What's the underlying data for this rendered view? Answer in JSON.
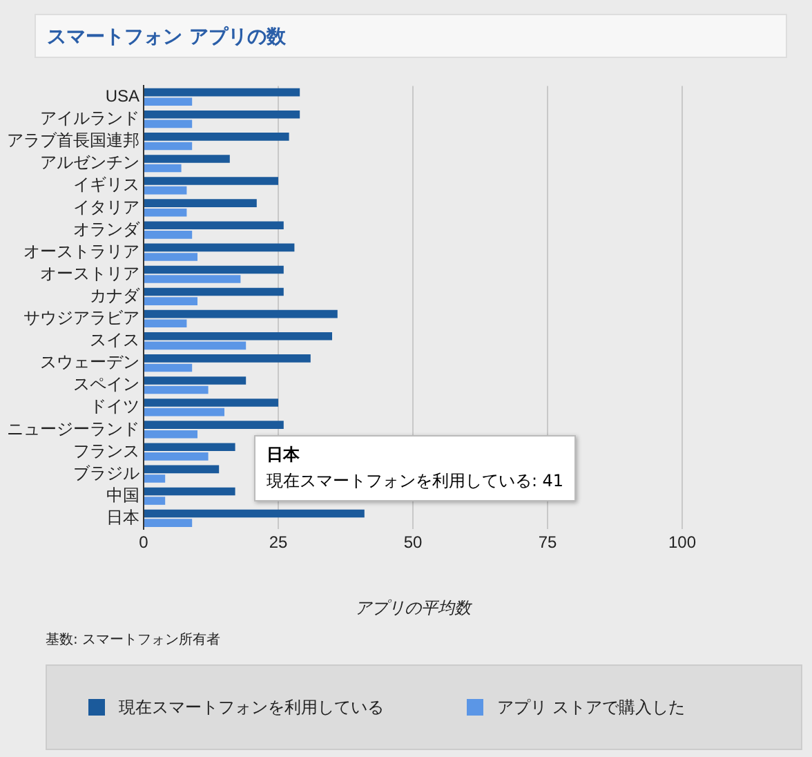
{
  "chart_data": {
    "type": "bar",
    "orientation": "horizontal",
    "title": "スマートフォン アプリの数",
    "xlabel": "アプリの平均数",
    "categories": [
      "USA",
      "アイルランド",
      "アラブ首長国連邦",
      "アルゼンチン",
      "イギリス",
      "イタリア",
      "オランダ",
      "オーストラリア",
      "オーストリア",
      "カナダ",
      "サウジアラビア",
      "スイス",
      "スウェーデン",
      "スペイン",
      "ドイツ",
      "ニュージーランド",
      "フランス",
      "ブラジル",
      "中国",
      "日本"
    ],
    "series": [
      {
        "name": "現在スマートフォンを利用している",
        "color": "#1b5a9b",
        "values": [
          29,
          29,
          27,
          16,
          25,
          21,
          26,
          28,
          26,
          26,
          36,
          35,
          31,
          19,
          25,
          26,
          17,
          14,
          17,
          41
        ]
      },
      {
        "name": "アプリ ストアで購入した",
        "color": "#5b96e6",
        "values": [
          9,
          9,
          9,
          7,
          8,
          8,
          9,
          10,
          18,
          10,
          8,
          19,
          9,
          12,
          15,
          10,
          12,
          4,
          4,
          9
        ]
      }
    ],
    "xlim": [
      0,
      100
    ],
    "xticks": [
      0,
      25,
      50,
      75,
      100
    ],
    "grid": "x",
    "legend": "bottom",
    "annotations": [
      {
        "text": "現在スマートフォンを利用している: 41",
        "x": 41,
        "y": "日本"
      },
      "基数: スマートフォン所有者"
    ]
  }
}
